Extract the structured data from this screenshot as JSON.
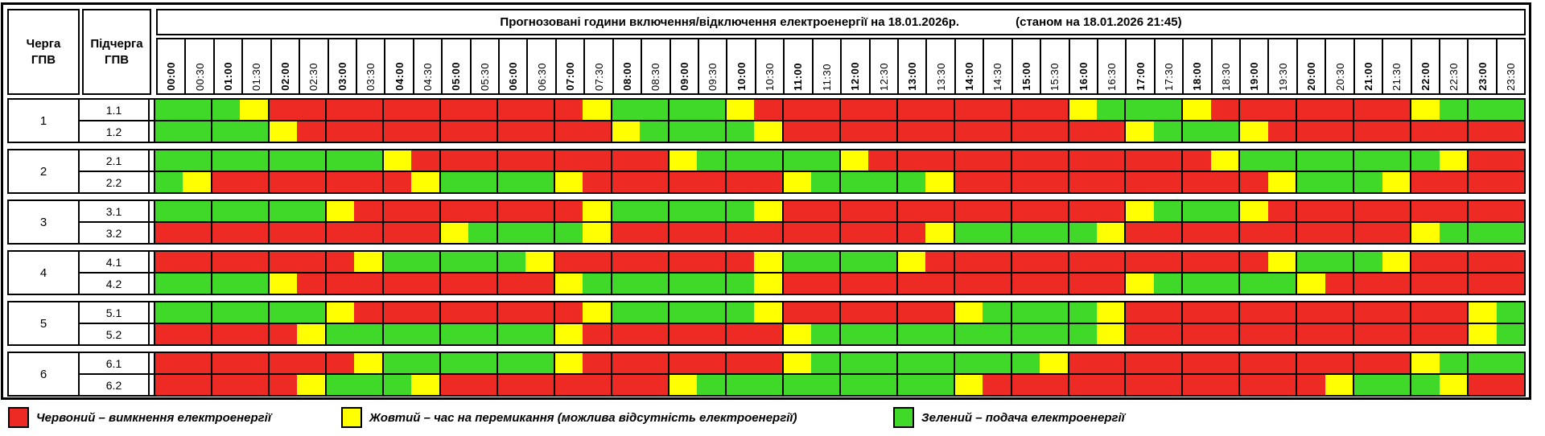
{
  "chart_data": {
    "type": "heatmap",
    "title": "Прогнозовані години включення/відключення електроенергії на 18.01.2026р.",
    "as_of": "(станом на 18.01.2026 21:45)",
    "col_headers": {
      "queue": "Черга\nГПВ",
      "subqueue": "Підчерга\nГПВ"
    },
    "x_labels": [
      "00:00",
      "00:30",
      "01:00",
      "01:30",
      "02:00",
      "02:30",
      "03:00",
      "03:30",
      "04:00",
      "04:30",
      "05:00",
      "05:30",
      "06:00",
      "06:30",
      "07:00",
      "07:30",
      "08:00",
      "08:30",
      "09:00",
      "09:30",
      "10:00",
      "10:30",
      "11:00",
      "11:30",
      "12:00",
      "12:30",
      "13:00",
      "13:30",
      "14:00",
      "14:30",
      "15:00",
      "15:30",
      "16:00",
      "16:30",
      "17:00",
      "17:30",
      "18:00",
      "18:30",
      "19:00",
      "19:30",
      "20:00",
      "20:30",
      "21:00",
      "21:30",
      "22:00",
      "22:30",
      "23:00",
      "23:30"
    ],
    "cell_states": {
      "R": "вимкнення електроенергії",
      "Y": "час на перемикання",
      "G": "подача електроенергії"
    },
    "colors": {
      "R": "#ed2a23",
      "Y": "#ffff00",
      "G": "#40d929"
    },
    "queues": [
      {
        "number": "1",
        "rows": [
          {
            "label": "1.1",
            "slots": "GGGYRRRRRRRRRRRYGGGGYRRRRRRRRRRRYGGGYRRRRRRRYGGG"
          },
          {
            "label": "1.2",
            "slots": "GGGGYRRRRRRRRRRRYGGGGYRRRRRRRRRRRRYGGGYRRRRRRRRR"
          }
        ]
      },
      {
        "number": "2",
        "rows": [
          {
            "label": "2.1",
            "slots": "GGGGGGGGYRRRRRRRRRYGGGGGYRRRRRRRRRRRRYGGGGGGGYRR"
          },
          {
            "label": "2.2",
            "slots": "GYRRRRRRRYGGGGYRRRRRRRYGGGGYRRRRRRRRRRRYGGGYRRRR"
          }
        ]
      },
      {
        "number": "3",
        "rows": [
          {
            "label": "3.1",
            "slots": "GGGGGGYRRRRRRRRYGGGGGYRRRRRRRRRRRRYGGGYRRRRRRRRR"
          },
          {
            "label": "3.2",
            "slots": "RRRRRRRRRRYGGGGYRRRRRRRRRRRYGGGGGYRRRRRRRRRRYGGG"
          }
        ]
      },
      {
        "number": "4",
        "rows": [
          {
            "label": "4.1",
            "slots": "RRRRRRRYGGGGGYRRRRRRRYGGGGYRRRRRRRRRRRRYGGGYRRRR"
          },
          {
            "label": "4.2",
            "slots": "GGGGYRRRRRRRRRYGGGGGGYRRRRRRRRRRRRYGGGGGYRRRRRRR"
          }
        ]
      },
      {
        "number": "5",
        "rows": [
          {
            "label": "5.1",
            "slots": "GGGGGGYRRRRRRRRYGGGGGYRRRRRRYGGGGYRRRRRRRRRRRRYG"
          },
          {
            "label": "5.2",
            "slots": "RRRRRYGGGGGGGGYRRRRRRRYGGGGGGGGGGYRRRRRRRRRRRRYG"
          }
        ]
      },
      {
        "number": "6",
        "rows": [
          {
            "label": "6.1",
            "slots": "RRRRRRRYGGGGGGYRRRRRRRYGGGGGGGGYRRRRRRRRRRRRYGGG"
          },
          {
            "label": "6.2",
            "slots": "RRRRRYGGGYRRRRRRRRYGGGGGGGGGYRRRRRRRRRRRRYGGGYRR"
          }
        ]
      }
    ],
    "legend": [
      {
        "state": "R",
        "label": "Червоний – вимкнення електроенергії"
      },
      {
        "state": "Y",
        "label": "Жовтий – час на перемикання (можлива відсутність електроенергії)"
      },
      {
        "state": "G",
        "label": "Зелений – подача електроенергії"
      }
    ]
  }
}
